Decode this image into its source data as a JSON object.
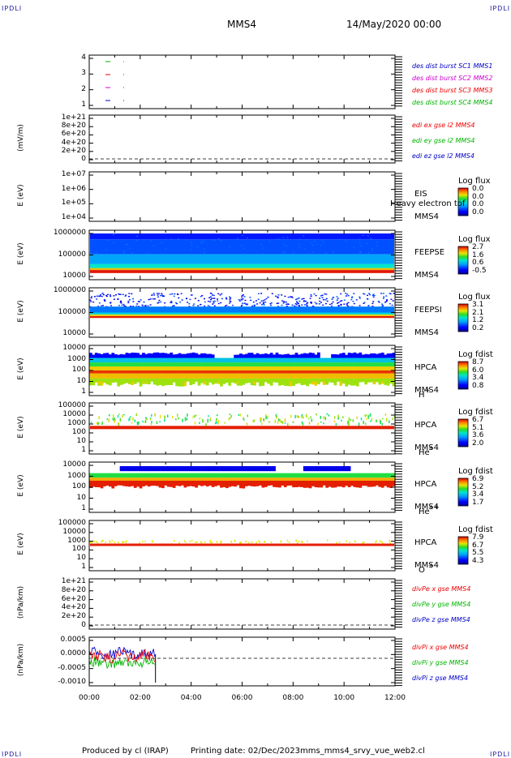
{
  "corners": {
    "tl": "IPDLI",
    "tr": "IPDLI",
    "bl": "IPDLI",
    "br": "IPDLI"
  },
  "header": {
    "spacecraft": "MMS4",
    "date": "14/May/2020 00:00"
  },
  "footer": {
    "producer": "Produced by cl (IRAP)",
    "printing": "Printing date: 02/Dec/2023",
    "file": "mms_mms4_srvy_vue_web2.cl"
  },
  "colors": {
    "blue": "#0000c8",
    "red": "#ee0000",
    "green": "#00b400",
    "magenta": "#d000d0",
    "dark": "#000000"
  },
  "chart_data": [
    {
      "type": "scatter",
      "panel": "burst",
      "yticks": [
        "4",
        "3",
        "2",
        "1"
      ],
      "series": [
        {
          "name": "des dist burst SC1 MMS1",
          "color": "#0000c8"
        },
        {
          "name": "des dist burst SC2 MMS2",
          "color": "#d000d0"
        },
        {
          "name": "des dist burst SC3 MMS3",
          "color": "#ee0000"
        },
        {
          "name": "des dist burst SC4 MMS4",
          "color": "#00b400"
        }
      ]
    },
    {
      "type": "line",
      "panel": "edi",
      "ylabel": "(mV/m)",
      "yticks": [
        "1e+21",
        "8e+20",
        "6e+20",
        "4e+20",
        "2e+20",
        "0"
      ],
      "series": [
        {
          "name": "edi ex gse l2 MMS4",
          "color": "#ee0000"
        },
        {
          "name": "edi ey gse l2 MMS4",
          "color": "#00b400"
        },
        {
          "name": "edi ez gse l2 MMS4",
          "color": "#0000c8"
        }
      ]
    },
    {
      "type": "heatmap",
      "panel": "eis",
      "ylabel": "E (eV)",
      "yticks": [
        "1e+07",
        "1e+06",
        "1e+05",
        "1e+04"
      ],
      "instrument": [
        "EIS",
        "MMS4"
      ],
      "overlay": "Heavy electron tof",
      "colorbar": {
        "title": "Log flux",
        "values": [
          "0.0",
          "0.0",
          "0.0",
          "0.0"
        ]
      }
    },
    {
      "type": "heatmap",
      "panel": "feepse",
      "ylabel": "E (eV)",
      "yticks": [
        "1000000",
        "100000",
        "10000"
      ],
      "instrument": [
        "FEEPSE",
        "MMS4"
      ],
      "colorbar": {
        "title": "Log flux",
        "values": [
          "2.7",
          "1.6",
          "0.6",
          "-0.5"
        ]
      }
    },
    {
      "type": "heatmap",
      "panel": "feepsi",
      "ylabel": "E (eV)",
      "yticks": [
        "1000000",
        "100000",
        "10000"
      ],
      "instrument": [
        "FEEPSI",
        "MMS4"
      ],
      "colorbar": {
        "title": "Log flux",
        "values": [
          "3.1",
          "2.1",
          "1.2",
          "0.2"
        ]
      }
    },
    {
      "type": "heatmap",
      "panel": "hpca-h",
      "ylabel": "E (eV)",
      "yticks": [
        "10000",
        "1000",
        "100",
        "10",
        "1"
      ],
      "instrument": [
        "HPCA",
        "MMS4"
      ],
      "species": "H",
      "charge": "+",
      "colorbar": {
        "title": "Log fdist",
        "values": [
          "8.7",
          "6.0",
          "3.4",
          "0.8"
        ]
      }
    },
    {
      "type": "heatmap",
      "panel": "hpca-he",
      "ylabel": "E (eV)",
      "yticks": [
        "100000",
        "10000",
        "1000",
        "100",
        "10",
        "1"
      ],
      "instrument": [
        "HPCA",
        "MMS4"
      ],
      "species": "He",
      "charge": "+",
      "colorbar": {
        "title": "Log fdist",
        "values": [
          "6.7",
          "5.1",
          "3.6",
          "2.0"
        ]
      }
    },
    {
      "type": "heatmap",
      "panel": "hpca-hepp",
      "ylabel": "E (eV)",
      "yticks": [
        "10000",
        "1000",
        "100",
        "10",
        "1"
      ],
      "instrument": [
        "HPCA",
        "MMS4"
      ],
      "species": "He",
      "charge": "++",
      "colorbar": {
        "title": "Log fdist",
        "values": [
          "6.9",
          "5.2",
          "3.4",
          "1.7"
        ]
      }
    },
    {
      "type": "heatmap",
      "panel": "hpca-o",
      "ylabel": "E (eV)",
      "yticks": [
        "100000",
        "10000",
        "1000",
        "100",
        "10",
        "1"
      ],
      "instrument": [
        "HPCA",
        "MMS4"
      ],
      "species": "O",
      "charge": "+",
      "colorbar": {
        "title": "Log fdist",
        "values": [
          "7.9",
          "6.7",
          "5.5",
          "4.3"
        ]
      }
    },
    {
      "type": "line",
      "panel": "divpe",
      "ylabel": "(nPa/km)",
      "yticks": [
        "1e+21",
        "8e+20",
        "6e+20",
        "4e+20",
        "2e+20",
        "0"
      ],
      "series": [
        {
          "name": "divPe x gse MMS4",
          "color": "#ee0000"
        },
        {
          "name": "divPe y gse MMS4",
          "color": "#00b400"
        },
        {
          "name": "divPe z gse MMS4",
          "color": "#0000c8"
        }
      ]
    },
    {
      "type": "line",
      "panel": "divpi",
      "ylabel": "(nPa/km)",
      "yticks": [
        "0.0005",
        "0.0000",
        "-0.0005",
        "-0.0010"
      ],
      "series": [
        {
          "name": "divPi x gse MMS4",
          "color": "#ee0000"
        },
        {
          "name": "divPi y gse MMS4",
          "color": "#00b400"
        },
        {
          "name": "divPi z gse MMS4",
          "color": "#0000c8"
        }
      ]
    }
  ],
  "x_axis": {
    "ticks": [
      "00:00",
      "02:00",
      "04:00",
      "06:00",
      "08:00",
      "10:00",
      "12:00"
    ]
  }
}
